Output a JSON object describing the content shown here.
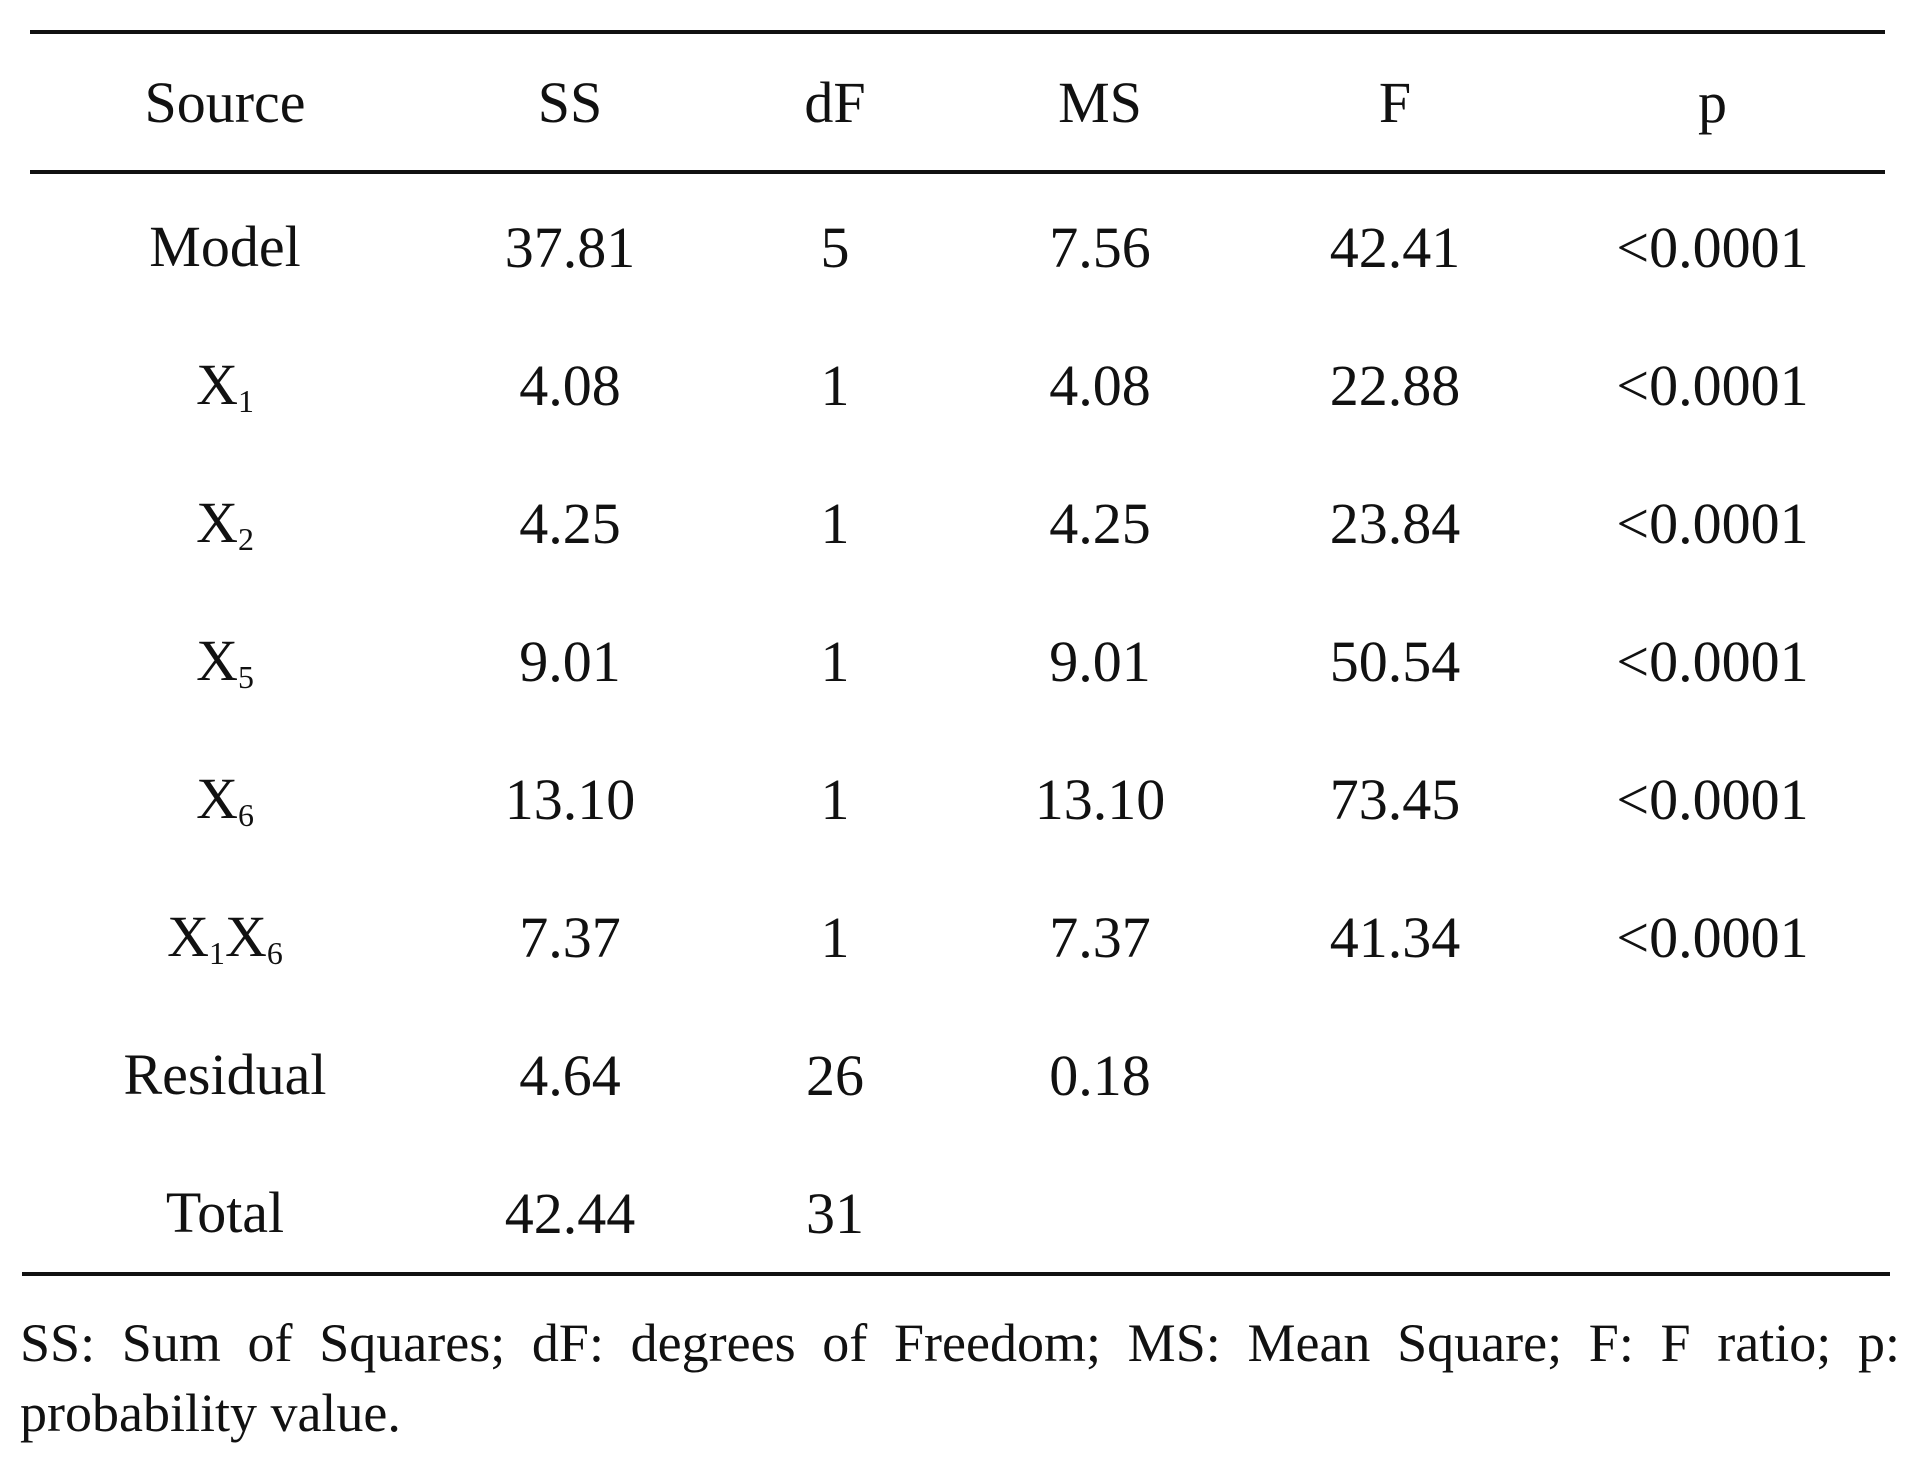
{
  "table": {
    "headers": [
      "Source",
      "SS",
      "dF",
      "MS",
      "F",
      "p"
    ],
    "rows": [
      {
        "source": "Model",
        "source_sub": "",
        "source2": "",
        "source2_sub": "",
        "ss": "37.81",
        "df": "5",
        "ms": "7.56",
        "f": "42.41",
        "p": "<0.0001"
      },
      {
        "source": "X",
        "source_sub": "1",
        "source2": "",
        "source2_sub": "",
        "ss": "4.08",
        "df": "1",
        "ms": "4.08",
        "f": "22.88",
        "p": "<0.0001"
      },
      {
        "source": "X",
        "source_sub": "2",
        "source2": "",
        "source2_sub": "",
        "ss": "4.25",
        "df": "1",
        "ms": "4.25",
        "f": "23.84",
        "p": "<0.0001"
      },
      {
        "source": "X",
        "source_sub": "5",
        "source2": "",
        "source2_sub": "",
        "ss": "9.01",
        "df": "1",
        "ms": "9.01",
        "f": "50.54",
        "p": "<0.0001"
      },
      {
        "source": "X",
        "source_sub": "6",
        "source2": "",
        "source2_sub": "",
        "ss": "13.10",
        "df": "1",
        "ms": "13.10",
        "f": "73.45",
        "p": "<0.0001"
      },
      {
        "source": "X",
        "source_sub": "1",
        "source2": "X",
        "source2_sub": "6",
        "ss": "7.37",
        "df": "1",
        "ms": "7.37",
        "f": "41.34",
        "p": "<0.0001"
      },
      {
        "source": "Residual",
        "source_sub": "",
        "source2": "",
        "source2_sub": "",
        "ss": "4.64",
        "df": "26",
        "ms": "0.18",
        "f": "",
        "p": ""
      },
      {
        "source": "Total",
        "source_sub": "",
        "source2": "",
        "source2_sub": "",
        "ss": "42.44",
        "df": "31",
        "ms": "",
        "f": "",
        "p": ""
      }
    ]
  },
  "footnote": "SS: Sum of Squares; dF: degrees of Freedom; MS: Mean Square; F: F ratio; p: probability value."
}
